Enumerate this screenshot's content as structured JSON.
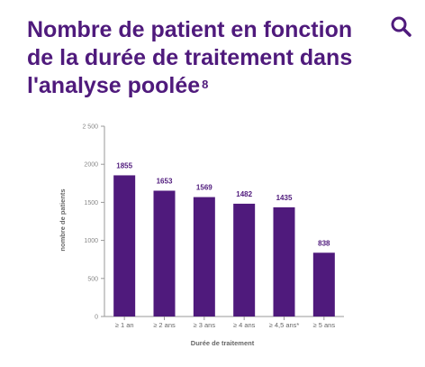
{
  "header": {
    "title": "Nombre de patient en fonction de la durée de traitement dans l'analyse poolée",
    "reference": "8",
    "search_icon": "search-icon"
  },
  "colors": {
    "accent": "#4f1a7c",
    "bar": "#4f1a7c",
    "axis": "#999999"
  },
  "chart_data": {
    "type": "bar",
    "categories": [
      "≥ 1 an",
      "≥ 2 ans",
      "≥ 3 ans",
      "≥ 4 ans",
      "≥ 4,5 ans*",
      "≥ 5 ans"
    ],
    "values": [
      1855,
      1653,
      1569,
      1482,
      1435,
      838
    ],
    "value_labels": [
      "1855",
      "1653",
      "1569",
      "1482",
      "1435",
      "838"
    ],
    "xlabel": "Durée de traitement",
    "ylabel": "nombre de patients",
    "ylim": [
      0,
      2500
    ],
    "yticks": [
      0,
      500,
      1000,
      1500,
      2000,
      2500
    ],
    "ytick_labels": [
      "0",
      "500",
      "1000",
      "1500",
      "2000",
      "2 500"
    ],
    "grid": false
  }
}
